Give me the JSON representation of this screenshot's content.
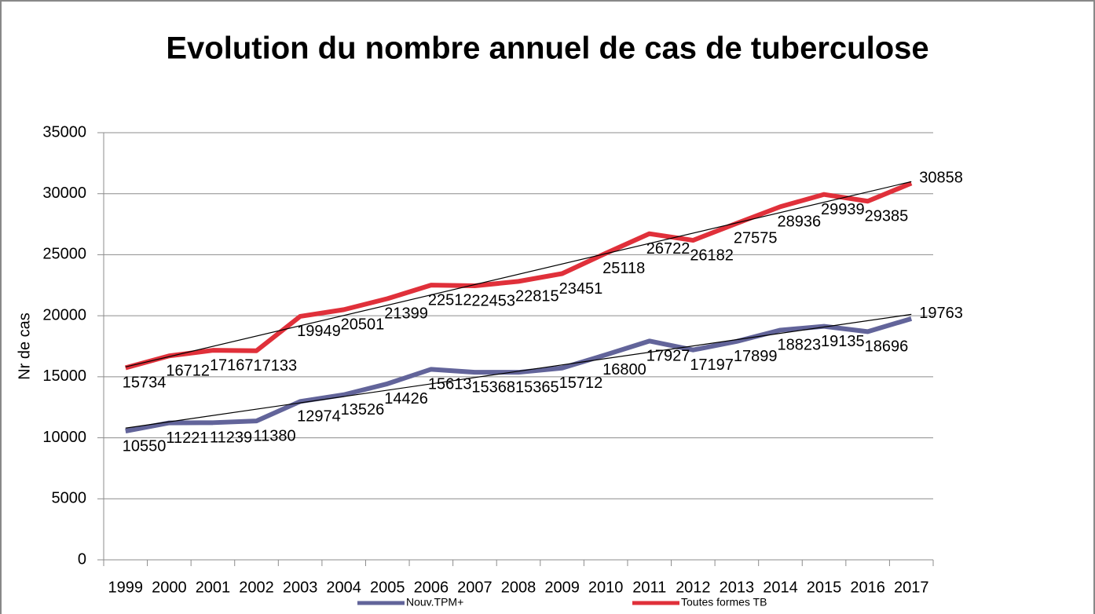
{
  "chart_data": {
    "type": "line",
    "title": "Evolution du nombre annuel de cas de tuberculose",
    "y_label": "Nr de cas",
    "categories": [
      "1999",
      "2000",
      "2001",
      "2002",
      "2003",
      "2004",
      "2005",
      "2006",
      "2007",
      "2008",
      "2009",
      "2010",
      "2011",
      "2012",
      "2013",
      "2014",
      "2015",
      "2016",
      "2017"
    ],
    "series": [
      {
        "name": "Nouv.TPM+",
        "color": "#62649a",
        "values": [
          10550,
          11221,
          11239,
          11380,
          12974,
          13526,
          14426,
          15613,
          15368,
          15365,
          15712,
          16800,
          17927,
          17197,
          17899,
          18823,
          19135,
          18696,
          19763
        ]
      },
      {
        "name": "Toutes formes TB",
        "color": "#e0303a",
        "values": [
          15734,
          16712,
          17167,
          17133,
          19949,
          20501,
          21399,
          22512,
          22453,
          22815,
          23451,
          25118,
          26722,
          26182,
          27575,
          28936,
          29939,
          29385,
          30858
        ]
      }
    ],
    "ylim": [
      0,
      35000
    ],
    "yticks": [
      0,
      5000,
      10000,
      15000,
      20000,
      25000,
      30000,
      35000
    ],
    "grid": true,
    "trendline": true,
    "data_labels": true,
    "legend": "bottom"
  }
}
